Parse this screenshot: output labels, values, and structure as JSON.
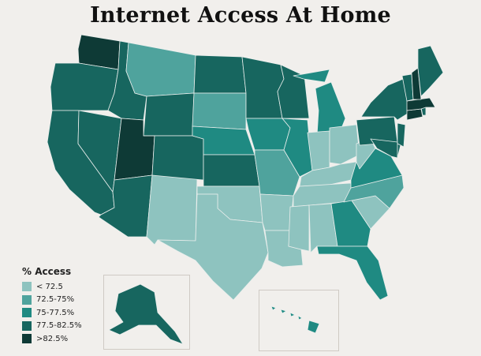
{
  "title": "Internet Access At Home",
  "legend": {
    "title": "% Access",
    "items": [
      {
        "label": "< 72.5",
        "color": "#8ec3bf"
      },
      {
        "label": "72.5-75%",
        "color": "#4fa39d"
      },
      {
        "label": "75-77.5%",
        "color": "#1f8a82"
      },
      {
        "label": "77.5-82.5%",
        "color": "#17665f"
      },
      {
        "label": ">82.5%",
        "color": "#0e3a36"
      }
    ]
  },
  "map_data": {
    "measure": "% Access",
    "states": [
      {
        "state": "WA",
        "bin": ">82.5%"
      },
      {
        "state": "OR",
        "bin": "77.5-82.5%"
      },
      {
        "state": "CA",
        "bin": "77.5-82.5%"
      },
      {
        "state": "NV",
        "bin": "77.5-82.5%"
      },
      {
        "state": "ID",
        "bin": "77.5-82.5%"
      },
      {
        "state": "MT",
        "bin": "72.5-75%"
      },
      {
        "state": "WY",
        "bin": "77.5-82.5%"
      },
      {
        "state": "UT",
        "bin": ">82.5%"
      },
      {
        "state": "AZ",
        "bin": "77.5-82.5%"
      },
      {
        "state": "NM",
        "bin": "< 72.5"
      },
      {
        "state": "CO",
        "bin": "77.5-82.5%"
      },
      {
        "state": "ND",
        "bin": "77.5-82.5%"
      },
      {
        "state": "SD",
        "bin": "72.5-75%"
      },
      {
        "state": "NE",
        "bin": "75-77.5%"
      },
      {
        "state": "KS",
        "bin": "77.5-82.5%"
      },
      {
        "state": "OK",
        "bin": "< 72.5"
      },
      {
        "state": "TX",
        "bin": "< 72.5"
      },
      {
        "state": "MN",
        "bin": "77.5-82.5%"
      },
      {
        "state": "IA",
        "bin": "75-77.5%"
      },
      {
        "state": "MO",
        "bin": "72.5-75%"
      },
      {
        "state": "AR",
        "bin": "< 72.5"
      },
      {
        "state": "LA",
        "bin": "< 72.5"
      },
      {
        "state": "WI",
        "bin": "77.5-82.5%"
      },
      {
        "state": "IL",
        "bin": "75-77.5%"
      },
      {
        "state": "MI",
        "bin": "75-77.5%"
      },
      {
        "state": "IN",
        "bin": "< 72.5"
      },
      {
        "state": "OH",
        "bin": "< 72.5"
      },
      {
        "state": "KY",
        "bin": "< 72.5"
      },
      {
        "state": "TN",
        "bin": "< 72.5"
      },
      {
        "state": "MS",
        "bin": "< 72.5"
      },
      {
        "state": "AL",
        "bin": "< 72.5"
      },
      {
        "state": "GA",
        "bin": "75-77.5%"
      },
      {
        "state": "FL",
        "bin": "75-77.5%"
      },
      {
        "state": "SC",
        "bin": "< 72.5"
      },
      {
        "state": "NC",
        "bin": "72.5-75%"
      },
      {
        "state": "VA",
        "bin": "75-77.5%"
      },
      {
        "state": "WV",
        "bin": "< 72.5"
      },
      {
        "state": "PA",
        "bin": "77.5-82.5%"
      },
      {
        "state": "NY",
        "bin": "77.5-82.5%"
      },
      {
        "state": "NJ",
        "bin": "77.5-82.5%"
      },
      {
        "state": "DE",
        "bin": "77.5-82.5%"
      },
      {
        "state": "MD",
        "bin": "77.5-82.5%"
      },
      {
        "state": "CT",
        "bin": ">82.5%"
      },
      {
        "state": "RI",
        "bin": "77.5-82.5%"
      },
      {
        "state": "MA",
        "bin": ">82.5%"
      },
      {
        "state": "VT",
        "bin": "77.5-82.5%"
      },
      {
        "state": "NH",
        "bin": ">82.5%"
      },
      {
        "state": "ME",
        "bin": "77.5-82.5%"
      },
      {
        "state": "AK",
        "bin": "77.5-82.5%"
      },
      {
        "state": "HI",
        "bin": "75-77.5%"
      }
    ]
  }
}
